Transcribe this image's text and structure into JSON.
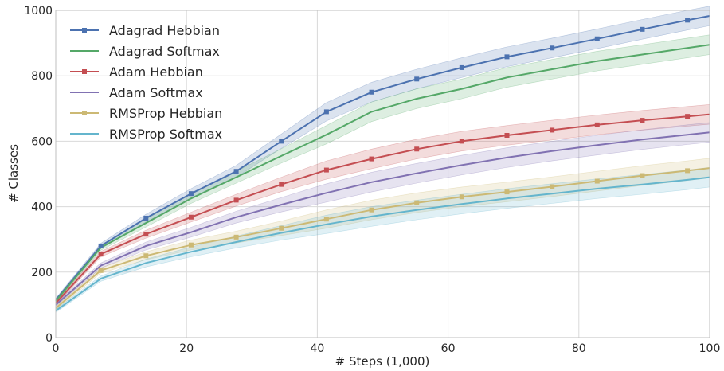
{
  "chart_data": {
    "type": "line",
    "xlabel": "# Steps (1,000)",
    "ylabel": "# Classes",
    "xlim": [
      0,
      100
    ],
    "ylim": [
      0,
      1000
    ],
    "xticks": [
      "0",
      "20",
      "40",
      "60",
      "80",
      "100"
    ],
    "yticks": [
      "0",
      "200",
      "400",
      "600",
      "800",
      "1000"
    ],
    "grid": true,
    "legend_position": "top-left",
    "x": [
      0,
      6.9,
      13.8,
      20.7,
      27.6,
      34.5,
      41.4,
      48.3,
      55.2,
      62.1,
      69,
      75.9,
      82.8,
      89.7,
      96.6,
      100
    ],
    "series": [
      {
        "name": "Adagrad Hebbian",
        "color": "#4c72b0",
        "marker": "square",
        "values": [
          115,
          280,
          365,
          440,
          508,
          600,
          690,
          750,
          790,
          825,
          858,
          885,
          913,
          942,
          970,
          983
        ]
      },
      {
        "name": "Adagrad Softmax",
        "color": "#55a868",
        "marker": "none",
        "values": [
          112,
          275,
          350,
          425,
          490,
          555,
          620,
          690,
          730,
          760,
          795,
          820,
          845,
          865,
          885,
          895
        ]
      },
      {
        "name": "Adam Hebbian",
        "color": "#c44e52",
        "marker": "square",
        "values": [
          105,
          255,
          316,
          368,
          420,
          468,
          512,
          546,
          576,
          600,
          618,
          634,
          650,
          664,
          676,
          682
        ]
      },
      {
        "name": "Adam Softmax",
        "color": "#8172b2",
        "marker": "none",
        "values": [
          100,
          220,
          280,
          322,
          368,
          406,
          442,
          475,
          502,
          527,
          550,
          570,
          588,
          605,
          620,
          627
        ]
      },
      {
        "name": "RMSProp Hebbian",
        "color": "#ccb974",
        "marker": "square",
        "values": [
          90,
          205,
          250,
          283,
          307,
          334,
          362,
          390,
          412,
          430,
          445,
          461,
          478,
          495,
          510,
          518
        ]
      },
      {
        "name": "RMSProp Softmax",
        "color": "#64b5cd",
        "marker": "none",
        "values": [
          82,
          180,
          228,
          262,
          292,
          320,
          346,
          370,
          390,
          408,
          425,
          440,
          455,
          468,
          482,
          490
        ]
      }
    ],
    "band_halfwidth": [
      5,
      8,
      12,
      15,
      18,
      22,
      28,
      30,
      30,
      30,
      30,
      30,
      30,
      30,
      30,
      30
    ]
  }
}
